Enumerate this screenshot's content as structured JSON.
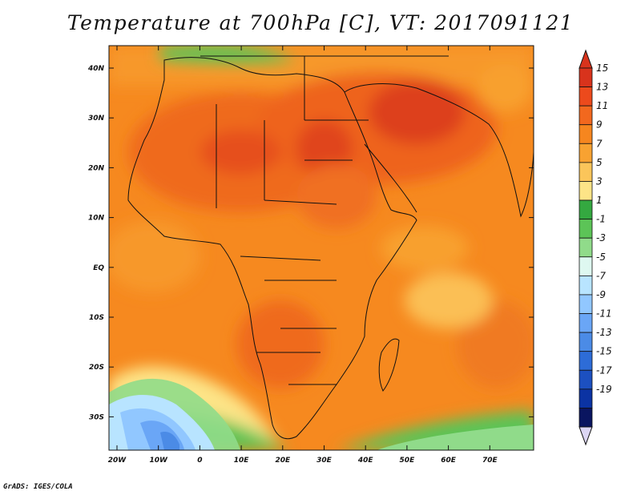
{
  "title": "Temperature at 700hPa [C], VT: 2017091121",
  "credit": "GrADS: IGES/COLA",
  "map": {
    "variable": "Temperature at 700hPa",
    "unit": "C",
    "valid_time": "2017091121",
    "region": "Africa and Middle East",
    "lat_labels": [
      "40N",
      "30N",
      "20N",
      "10N",
      "EQ",
      "10S",
      "20S",
      "30S"
    ],
    "lon_labels": [
      "20W",
      "10W",
      "0",
      "10E",
      "20E",
      "30E",
      "40E",
      "50E",
      "60E",
      "70E"
    ]
  },
  "colorbar": {
    "labels": [
      "15",
      "13",
      "11",
      "9",
      "7",
      "5",
      "3",
      "1",
      "-1",
      "-3",
      "-5",
      "-7",
      "-9",
      "-11",
      "-13",
      "-15",
      "-17",
      "-19"
    ],
    "colors": [
      "#d8331c",
      "#ec4a1c",
      "#f2681e",
      "#f6861f",
      "#f8a231",
      "#fbc55a",
      "#fde487",
      "#34a840",
      "#5cc457",
      "#90db8a",
      "#def8f0",
      "#b8e4ff",
      "#91c7ff",
      "#6aa6f6",
      "#4b8be6",
      "#2d6cd7",
      "#1c50c0",
      "#0b33a3",
      "#0a1560"
    ],
    "overflow_colors": {
      "top": "#d8331c",
      "bottom": "#dcd6f4"
    }
  }
}
